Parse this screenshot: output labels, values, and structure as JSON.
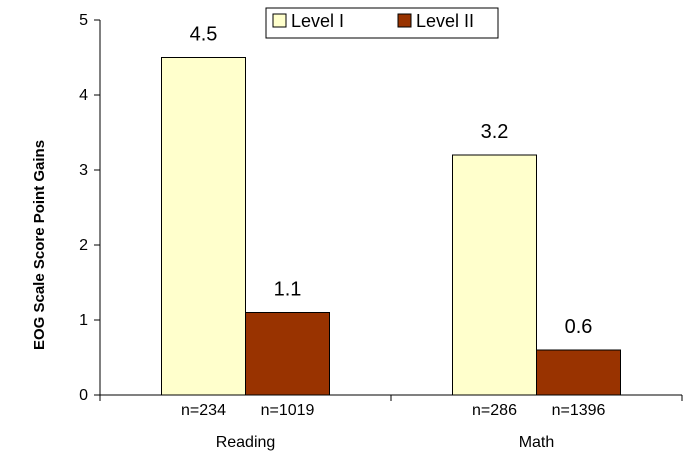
{
  "chart_data": {
    "type": "bar",
    "ylabel": "EOG Scale Score Point Gains",
    "ylim": [
      0,
      5
    ],
    "yticks": [
      "0",
      "1",
      "2",
      "3",
      "4",
      "5"
    ],
    "categories": [
      "Reading",
      "Math"
    ],
    "series": [
      {
        "name": "Level I",
        "values": [
          4.5,
          3.2
        ],
        "labels": [
          "4.5",
          "3.2"
        ],
        "n": [
          "n=234",
          "n=286"
        ],
        "color": "#ffffcc"
      },
      {
        "name": "Level II",
        "values": [
          1.1,
          0.6
        ],
        "labels": [
          "1.1",
          "0.6"
        ],
        "n": [
          "n=1019",
          "n=1396"
        ],
        "color": "#993300"
      }
    ],
    "grid": false,
    "legend_position": "top-right"
  }
}
